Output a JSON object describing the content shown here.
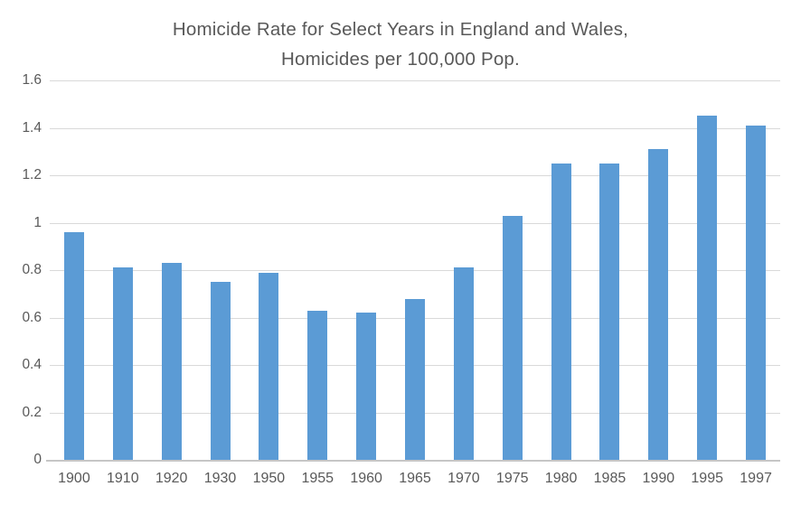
{
  "chart_data": {
    "type": "bar",
    "title": "Homicide Rate for Select Years in England and Wales, Homicides per 100,000 Pop.",
    "title_line1": "Homicide Rate for Select Years in England and Wales,",
    "title_line2": "Homicides per 100,000 Pop.",
    "categories": [
      "1900",
      "1910",
      "1920",
      "1930",
      "1950",
      "1955",
      "1960",
      "1965",
      "1970",
      "1975",
      "1980",
      "1985",
      "1990",
      "1995",
      "1997"
    ],
    "values": [
      0.96,
      0.81,
      0.83,
      0.75,
      0.79,
      0.63,
      0.62,
      0.68,
      0.81,
      1.03,
      1.25,
      1.25,
      1.31,
      1.45,
      1.41
    ],
    "xlabel": "",
    "ylabel": "",
    "ylim": [
      0,
      1.6
    ],
    "ytick_step": 0.2,
    "yticks": [
      {
        "label": "0",
        "value": 0
      },
      {
        "label": "0.2",
        "value": 0.2
      },
      {
        "label": "0.4",
        "value": 0.4
      },
      {
        "label": "0.6",
        "value": 0.6
      },
      {
        "label": "0.8",
        "value": 0.8
      },
      {
        "label": "1",
        "value": 1
      },
      {
        "label": "1.2",
        "value": 1.2
      },
      {
        "label": "1.4",
        "value": 1.4
      },
      {
        "label": "1.6",
        "value": 1.6
      }
    ],
    "grid": true,
    "legend": false,
    "colors": {
      "bar": "#5B9BD5",
      "gridline": "#D9D9D9",
      "axis_line": "#C6C6C6",
      "text": "#595959",
      "title_text": "#595959",
      "background": "#FFFFFF"
    }
  }
}
